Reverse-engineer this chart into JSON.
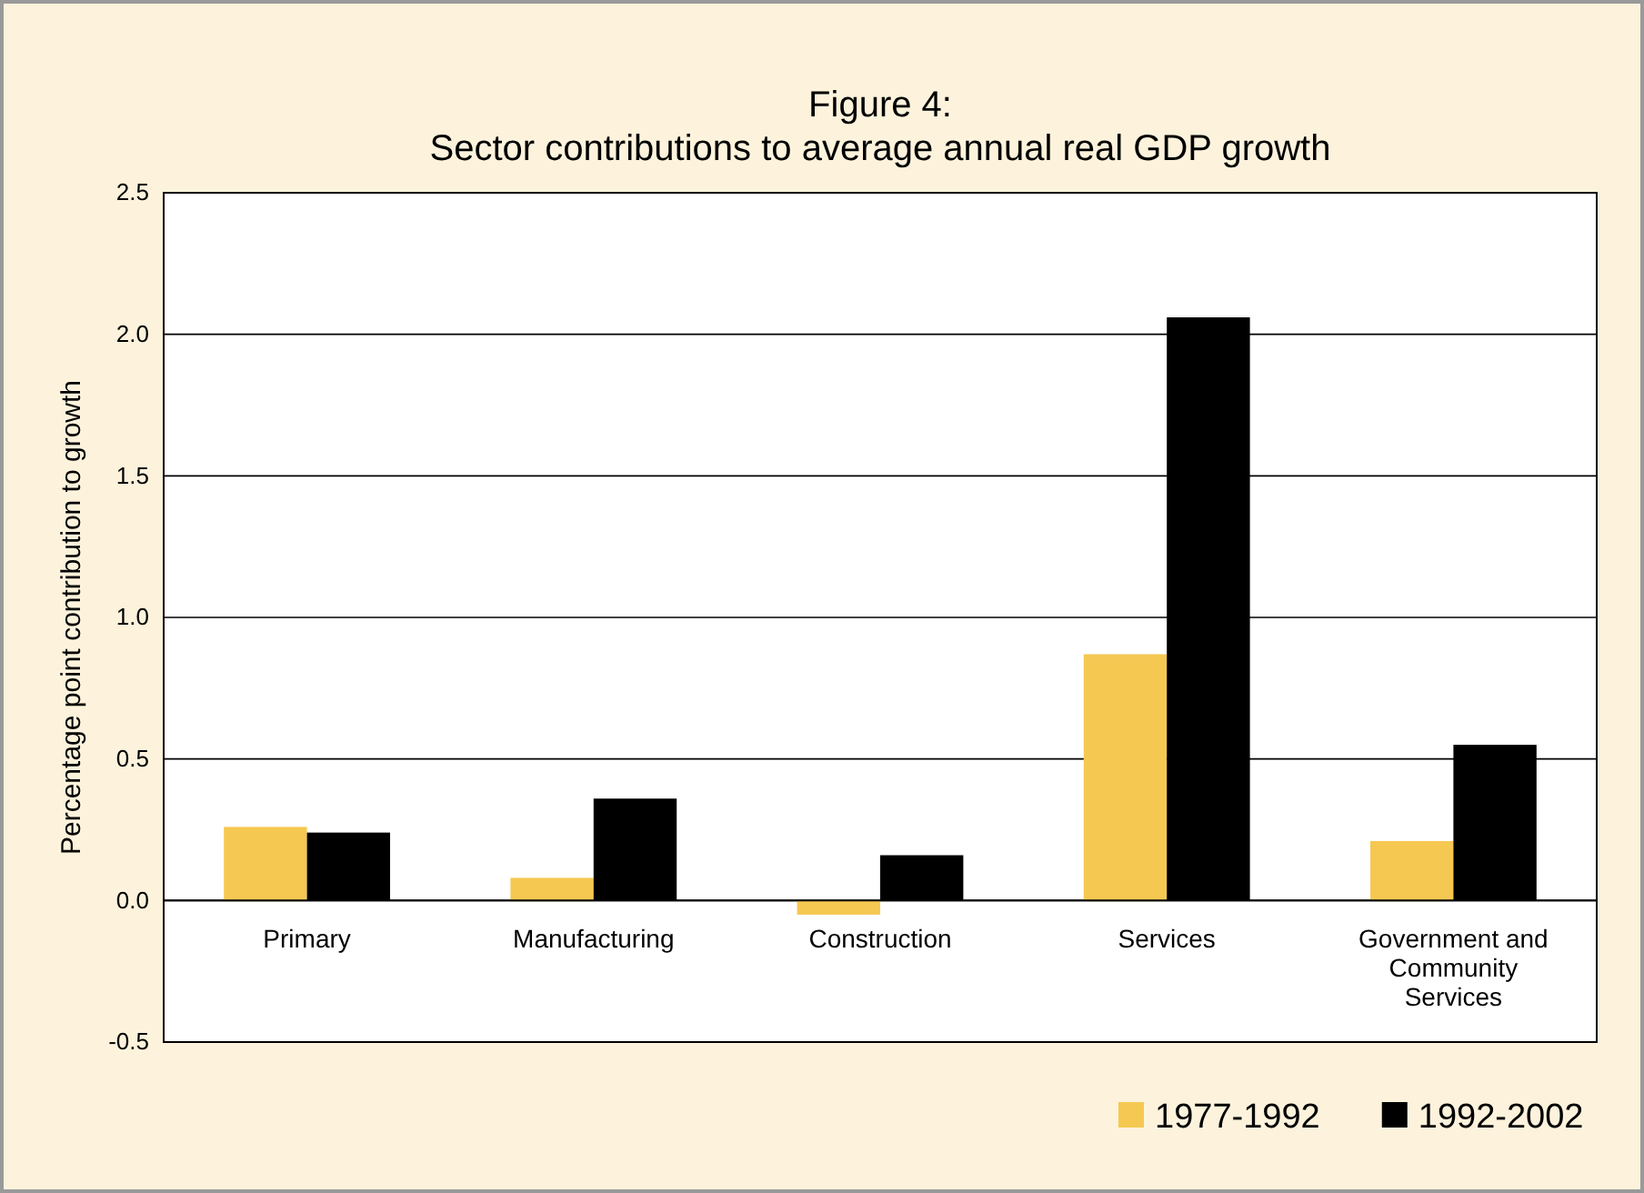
{
  "chart_data": {
    "type": "bar",
    "title": "Figure 4:\nSector contributions to average annual real GDP growth",
    "ylabel": "Percentage point contribution to growth",
    "categories": [
      "Primary",
      "Manufacturing",
      "Construction",
      "Services",
      "Government and Community Services"
    ],
    "series": [
      {
        "name": "1977-1992",
        "color": "#f5c851",
        "values": [
          0.26,
          0.08,
          -0.05,
          0.87,
          0.21
        ]
      },
      {
        "name": "1992-2002",
        "color": "#000000",
        "values": [
          0.24,
          0.36,
          0.16,
          2.06,
          0.55
        ]
      }
    ],
    "ylim": [
      -0.5,
      2.5
    ],
    "yticks": [
      {
        "value": -0.5,
        "label": "-0.5"
      },
      {
        "value": 0,
        "label": "0.0"
      },
      {
        "value": 0.5,
        "label": "0.5"
      },
      {
        "value": 1,
        "label": "1.0"
      },
      {
        "value": 1.5,
        "label": "1.5"
      },
      {
        "value": 2,
        "label": "2.0"
      },
      {
        "value": 2.5,
        "label": "2.5"
      }
    ],
    "grid": "y",
    "legend": "bottom right"
  }
}
